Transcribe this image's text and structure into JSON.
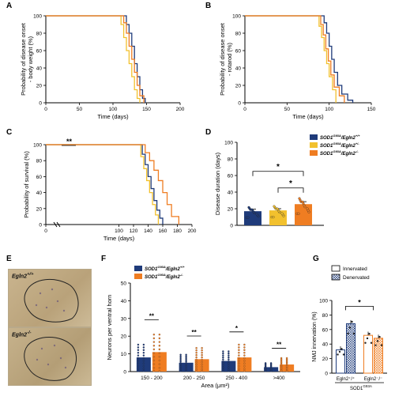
{
  "panel_letters": [
    "A",
    "B",
    "C",
    "D",
    "E",
    "F",
    "G"
  ],
  "micrographs": {
    "top_label": "Egln2",
    "top_sup": "+/+",
    "bottom_label": "Egln2",
    "bottom_sup": "-/-"
  },
  "colors": {
    "wt": "#1f3b7a",
    "het": "#f2c12e",
    "ko": "#ef7d22",
    "axis": "#000000"
  },
  "chart_data": [
    {
      "id": "A",
      "type": "line",
      "step": true,
      "xlabel": "Time (days)",
      "ylabel_line1": "Probability of disease onset",
      "ylabel_line2": "- body weight (%)",
      "xlim": [
        0,
        200
      ],
      "ylim": [
        0,
        100
      ],
      "xticks": [
        0,
        50,
        100,
        150,
        200
      ],
      "yticks": [
        0,
        20,
        40,
        60,
        80,
        100
      ],
      "series": [
        {
          "color": "wt",
          "x": [
            0,
            116,
            120,
            124,
            128,
            132,
            136,
            140,
            144,
            148
          ],
          "y": [
            100,
            100,
            90,
            80,
            65,
            45,
            30,
            15,
            5,
            0
          ]
        },
        {
          "color": "het",
          "x": [
            0,
            108,
            112,
            116,
            120,
            124,
            128,
            132,
            136,
            140
          ],
          "y": [
            100,
            100,
            90,
            75,
            60,
            45,
            30,
            15,
            5,
            0
          ]
        },
        {
          "color": "ko",
          "x": [
            0,
            112,
            116,
            120,
            124,
            128,
            132,
            136,
            140,
            146
          ],
          "y": [
            100,
            100,
            92,
            80,
            65,
            50,
            35,
            20,
            8,
            0
          ]
        }
      ]
    },
    {
      "id": "B",
      "type": "line",
      "step": true,
      "xlabel": "Time (days)",
      "ylabel_line1": "Probability of disease onset",
      "ylabel_line2": "- rotarod (%)",
      "xlim": [
        0,
        150
      ],
      "ylim": [
        0,
        100
      ],
      "xticks": [
        0,
        50,
        100,
        150
      ],
      "yticks": [
        0,
        20,
        40,
        60,
        80,
        100
      ],
      "series": [
        {
          "color": "wt",
          "x": [
            0,
            90,
            94,
            97,
            100,
            103,
            106,
            110,
            115,
            122,
            128
          ],
          "y": [
            100,
            100,
            92,
            80,
            65,
            50,
            35,
            20,
            10,
            3,
            0
          ]
        },
        {
          "color": "het",
          "x": [
            0,
            84,
            88,
            91,
            94,
            97,
            100,
            104,
            108
          ],
          "y": [
            100,
            100,
            88,
            75,
            60,
            45,
            30,
            15,
            0
          ]
        },
        {
          "color": "ko",
          "x": [
            0,
            86,
            90,
            93,
            96,
            99,
            102,
            106,
            112,
            118
          ],
          "y": [
            100,
            100,
            90,
            78,
            62,
            48,
            32,
            18,
            8,
            0
          ]
        }
      ]
    },
    {
      "id": "C",
      "type": "line",
      "step": true,
      "xlabel": "Time (days)",
      "ylabel_line1": "Probability of survival (%)",
      "ylabel_line2": "",
      "xlim": [
        0,
        200
      ],
      "ylim": [
        0,
        100
      ],
      "xticks": [
        0,
        100,
        120,
        140,
        160,
        180,
        200
      ],
      "yticks": [
        0,
        20,
        40,
        60,
        80,
        100
      ],
      "annotation": "**",
      "series": [
        {
          "color": "wt",
          "x": [
            0,
            128,
            132,
            136,
            140,
            144,
            148,
            152,
            156,
            160
          ],
          "y": [
            100,
            100,
            88,
            75,
            60,
            45,
            30,
            18,
            8,
            0
          ]
        },
        {
          "color": "het",
          "x": [
            0,
            126,
            130,
            134,
            138,
            142,
            146,
            150,
            154
          ],
          "y": [
            100,
            100,
            85,
            70,
            55,
            40,
            25,
            12,
            0
          ]
        },
        {
          "color": "ko",
          "x": [
            0,
            130,
            136,
            142,
            148,
            154,
            160,
            166,
            172,
            182
          ],
          "y": [
            100,
            100,
            90,
            80,
            68,
            55,
            40,
            25,
            10,
            0
          ]
        }
      ]
    },
    {
      "id": "D",
      "type": "bar",
      "ylabel": "Disease duration (days)",
      "ylim": [
        0,
        100
      ],
      "yticks": [
        0,
        20,
        40,
        60,
        80,
        100
      ],
      "legend": [
        {
          "gene": "SOD1",
          "sup": "G93A",
          "rest": "/Egln2",
          "rest_sup": "+/+",
          "color": "wt"
        },
        {
          "gene": "SOD1",
          "sup": "G93A",
          "rest": "/Egln2",
          "rest_sup": "+/-",
          "color": "het"
        },
        {
          "gene": "SOD1",
          "sup": "G93A",
          "rest": "/Egln2",
          "rest_sup": "-/-",
          "color": "ko"
        }
      ],
      "bars": [
        {
          "color": "wt",
          "value": 17,
          "err": 2.5
        },
        {
          "color": "het",
          "value": 18,
          "err": 2
        },
        {
          "color": "ko",
          "value": 25.5,
          "err": 3
        }
      ],
      "significance": [
        {
          "from": 0,
          "to": 2,
          "label": "*"
        },
        {
          "from": 1,
          "to": 2,
          "label": "*"
        }
      ]
    },
    {
      "id": "F",
      "type": "bar",
      "xlabel": "Area (μm²)",
      "ylabel": "Neurons per ventral horn",
      "ylim": [
        0,
        50
      ],
      "yticks": [
        0,
        10,
        20,
        30,
        40,
        50
      ],
      "categories": [
        "150 - 200",
        "200 - 250",
        "250 - 400",
        ">400"
      ],
      "legend": [
        {
          "gene": "SOD1",
          "sup": "G93A",
          "rest": "/Egln2",
          "rest_sup": "+/+",
          "color": "wt"
        },
        {
          "gene": "SOD1",
          "sup": "G93A",
          "rest": "/Egln2",
          "rest_sup": "-/-",
          "color": "ko"
        }
      ],
      "series": [
        {
          "color": "wt",
          "values": [
            8,
            5,
            6,
            2.5
          ]
        },
        {
          "color": "ko",
          "values": [
            11,
            7,
            8,
            4
          ]
        }
      ],
      "significance": [
        "**",
        "**",
        "*",
        "**"
      ]
    },
    {
      "id": "G",
      "type": "bar",
      "ylabel": "NMJ innervation (%)",
      "ylim": [
        0,
        100
      ],
      "yticks": [
        0,
        20,
        40,
        60,
        80,
        100
      ],
      "categories": [
        "Egln2⁺/⁺",
        "Egln2⁻/⁻"
      ],
      "group_label": "SOD1",
      "group_sup": "G93A",
      "legend": [
        "Innervated",
        "Denervated"
      ],
      "series": [
        {
          "name": "Innervated",
          "values": [
            32,
            52
          ]
        },
        {
          "name": "Denervated",
          "values": [
            68,
            48
          ]
        }
      ],
      "significance": [
        "*"
      ]
    }
  ]
}
